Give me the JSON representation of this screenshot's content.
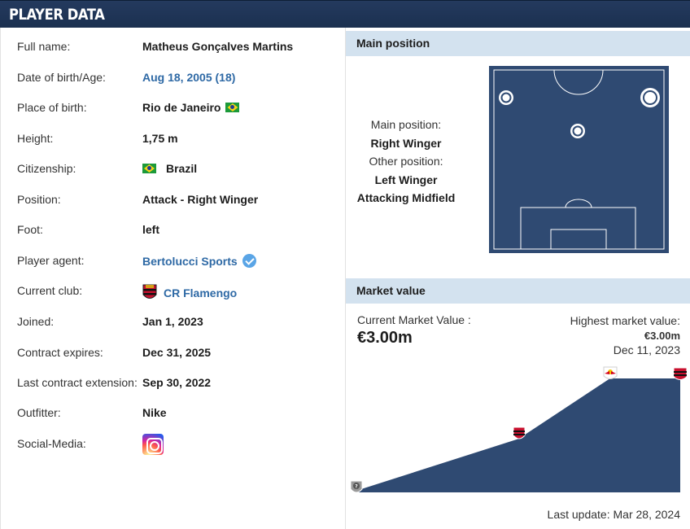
{
  "header": {
    "title": "PLAYER DATA"
  },
  "player": {
    "rows": [
      {
        "label": "Full name:",
        "value": "Matheus Gonçalves Martins",
        "link": false,
        "flag": false
      },
      {
        "label": "Date of birth/Age:",
        "value": "Aug 18, 2005 (18)",
        "link": true,
        "flag": false
      },
      {
        "label": "Place of birth:",
        "value": "Rio de Janeiro",
        "link": false,
        "flag": "after"
      },
      {
        "label": "Height:",
        "value": "1,75 m",
        "link": false,
        "flag": false
      },
      {
        "label": "Citizenship:",
        "value": "Brazil",
        "link": false,
        "flag": "before"
      },
      {
        "label": "Position:",
        "value": "Attack - Right Winger",
        "link": false,
        "flag": false
      },
      {
        "label": "Foot:",
        "value": "left",
        "link": false,
        "flag": false
      },
      {
        "label": "Player agent:",
        "value": "Bertolucci Sports",
        "link": true,
        "flag": false,
        "verified": true
      },
      {
        "label": "Current club:",
        "value": "CR Flamengo",
        "link": true,
        "flag": false,
        "crest": true
      },
      {
        "label": "Joined:",
        "value": "Jan 1, 2023",
        "link": false,
        "flag": false
      },
      {
        "label": "Contract expires:",
        "value": "Dec 31, 2025",
        "link": false,
        "flag": false
      },
      {
        "label": "Last contract extension:",
        "value": "Sep 30, 2022",
        "link": false,
        "flag": false
      },
      {
        "label": "Outfitter:",
        "value": "Nike",
        "link": false,
        "flag": false
      },
      {
        "label": "Social-Media:",
        "value": "",
        "link": false,
        "flag": false,
        "instagram": true
      }
    ]
  },
  "main_position": {
    "header": "Main position",
    "main_label": "Main position:",
    "main_value": "Right Winger",
    "other_label": "Other position:",
    "other_values": [
      "Left Winger",
      "Attacking Midfield"
    ]
  },
  "market_value": {
    "header": "Market value",
    "current_label": "Current Market Value :",
    "current_value": "€3.00m",
    "highest_label": "Highest market value:",
    "highest_value": "€3.00m",
    "highest_date": "Dec 11, 2023",
    "last_update": "Last update: Mar 28, 2024"
  },
  "colors": {
    "header_bg": "#1b3050",
    "section_bg": "#d3e2ef",
    "pitch": "#2f4a72",
    "link": "#2e69a5"
  }
}
